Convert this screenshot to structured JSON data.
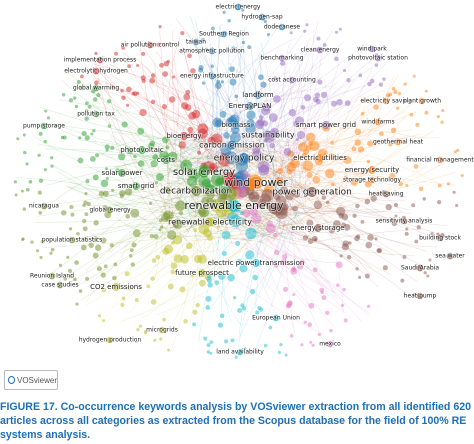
{
  "figure": {
    "nodes": [
      {
        "label": "electric energy"
      },
      {
        "label": "hydrogen-sap"
      },
      {
        "label": "dodecanese"
      },
      {
        "label": "Southern Region"
      },
      {
        "label": "taiwan"
      },
      {
        "label": "air pollution control"
      },
      {
        "label": "atmospheric pollution"
      },
      {
        "label": "implementation process"
      },
      {
        "label": "benchmarking"
      },
      {
        "label": "clean energy"
      },
      {
        "label": "wind park"
      },
      {
        "label": "photovoltaic station"
      },
      {
        "label": "electrolytic hydrogen"
      },
      {
        "label": "energy infrastructure"
      },
      {
        "label": "cost accounting"
      },
      {
        "label": "global warming"
      },
      {
        "label": "landform"
      },
      {
        "label": "EnergyPLAN"
      },
      {
        "label": "electricity saving"
      },
      {
        "label": "plant growth"
      },
      {
        "label": "pollution tax"
      },
      {
        "label": "smart power grid"
      },
      {
        "label": "wind farms"
      },
      {
        "label": "pump storage"
      },
      {
        "label": "carbon emission"
      },
      {
        "label": "bioenergy"
      },
      {
        "label": "energy policy"
      },
      {
        "label": "geothermal heat"
      },
      {
        "label": "solar energy"
      },
      {
        "label": "wind power"
      },
      {
        "label": "power generation"
      },
      {
        "label": "decarbonization"
      },
      {
        "label": "renewable energy"
      },
      {
        "label": "renewable electricity"
      },
      {
        "label": "financial management"
      },
      {
        "label": "heat saving"
      },
      {
        "label": "energy security"
      },
      {
        "label": "global energy"
      },
      {
        "label": "nicaragua"
      },
      {
        "label": "sensitivity analysis"
      },
      {
        "label": "building stock"
      },
      {
        "label": "solar power"
      },
      {
        "label": "smart grid"
      },
      {
        "label": "Reunion Island"
      },
      {
        "label": "case studies"
      },
      {
        "label": "CO2 emissions"
      },
      {
        "label": "future prospect"
      },
      {
        "label": "electric power transmission"
      },
      {
        "label": "Saudi Arabia"
      },
      {
        "label": "sea water"
      },
      {
        "label": "microgrids"
      },
      {
        "label": "hydrogen production"
      },
      {
        "label": "land availability"
      },
      {
        "label": "European Union"
      },
      {
        "label": "heat pump"
      },
      {
        "label": "mexico"
      },
      {
        "label": "sustainability"
      },
      {
        "label": "biomass"
      },
      {
        "label": "electric utilities"
      },
      {
        "label": "energy storage"
      },
      {
        "label": "storage technology"
      },
      {
        "label": "population statistics"
      },
      {
        "label": "costs"
      },
      {
        "label": "photovoltaic"
      }
    ],
    "logo": "VOSviewer",
    "caption": {
      "label": "FIGURE 17.",
      "text": "Co-occurrence keywords analysis by VOSviewer extraction from all identified 620 articles across all categories as extracted from the Scopus database for the field of 100% RE systems analysis."
    }
  }
}
